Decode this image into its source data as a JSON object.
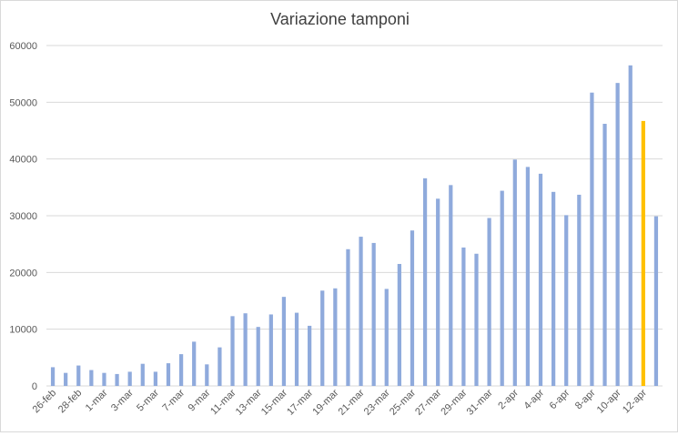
{
  "chart_data": {
    "type": "bar",
    "title": "Variazione tamponi",
    "xlabel": "",
    "ylabel": "",
    "ylim": [
      0,
      60000
    ],
    "yticks": [
      0,
      10000,
      20000,
      30000,
      40000,
      50000,
      60000
    ],
    "grid": true,
    "legend": "none",
    "colors": {
      "default": "#8faadc",
      "highlight": "#ffc000",
      "grid": "#d9d9d9",
      "text": "#595959",
      "title": "#404040"
    },
    "highlight_index": 46,
    "categories": [
      "26-feb",
      "27-feb",
      "28-feb",
      "29-feb",
      "1-mar",
      "2-mar",
      "3-mar",
      "4-mar",
      "5-mar",
      "6-mar",
      "7-mar",
      "8-mar",
      "9-mar",
      "10-mar",
      "11-mar",
      "12-mar",
      "13-mar",
      "14-mar",
      "15-mar",
      "16-mar",
      "17-mar",
      "18-mar",
      "19-mar",
      "20-mar",
      "21-mar",
      "22-mar",
      "23-mar",
      "24-mar",
      "25-mar",
      "26-mar",
      "27-mar",
      "28-mar",
      "29-mar",
      "30-mar",
      "31-mar",
      "1-apr",
      "2-apr",
      "3-apr",
      "4-apr",
      "5-apr",
      "6-apr",
      "7-apr",
      "8-apr",
      "9-apr",
      "10-apr",
      "11-apr",
      "12-apr",
      "13-apr"
    ],
    "visible_tick_labels": [
      "26-feb",
      "28-feb",
      "1-mar",
      "3-mar",
      "5-mar",
      "7-mar",
      "9-mar",
      "11-mar",
      "13-mar",
      "15-mar",
      "17-mar",
      "19-mar",
      "21-mar",
      "23-mar",
      "25-mar",
      "27-mar",
      "29-mar",
      "31-mar",
      "2-apr",
      "4-apr",
      "6-apr",
      "8-apr",
      "10-apr",
      "12-apr"
    ],
    "values": [
      3300,
      2300,
      3600,
      2800,
      2300,
      2100,
      2500,
      3900,
      2500,
      4000,
      5600,
      7800,
      3800,
      6800,
      12300,
      12800,
      10400,
      12600,
      15700,
      12900,
      10600,
      16800,
      17200,
      24100,
      26300,
      25200,
      17100,
      21500,
      27400,
      36600,
      33000,
      35400,
      24400,
      23300,
      29600,
      34400,
      39900,
      38600,
      37400,
      34200,
      30100,
      33700,
      51700,
      46200,
      53400,
      56500,
      46700,
      29900
    ]
  }
}
